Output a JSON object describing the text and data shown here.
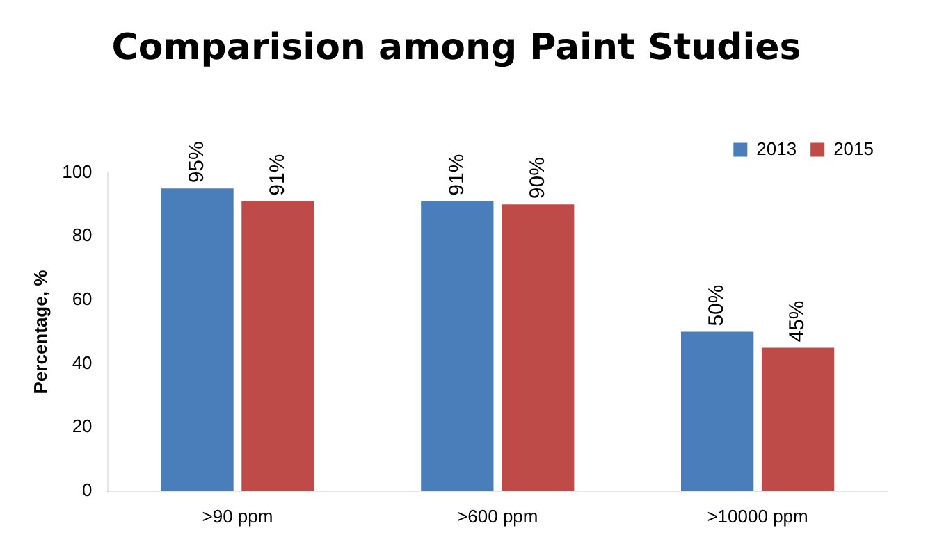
{
  "chart_data": {
    "type": "bar",
    "title": "Comparision among Paint Studies",
    "ylabel": "Percentage, %",
    "categories": [
      ">90 ppm",
      ">600 ppm",
      ">10000 ppm"
    ],
    "series": [
      {
        "name": "2013",
        "color": "#4a7ebb",
        "values": [
          95,
          91,
          50
        ],
        "value_labels": [
          "95%",
          "91%",
          "50%"
        ]
      },
      {
        "name": "2015",
        "color": "#be4b48",
        "values": [
          91,
          90,
          45
        ],
        "value_labels": [
          "91%",
          "90%",
          "45%"
        ]
      }
    ],
    "ylim": [
      0,
      100
    ],
    "yticks": [
      0,
      20,
      40,
      60,
      80,
      100
    ],
    "grid": false,
    "legend": "top right"
  }
}
